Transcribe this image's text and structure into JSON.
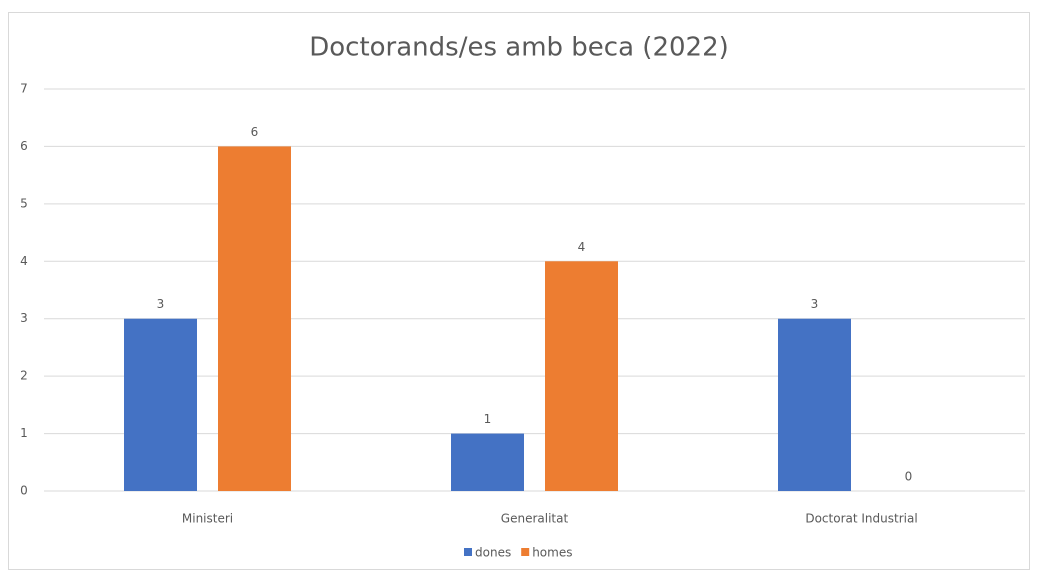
{
  "chart_data": {
    "type": "bar",
    "title": "Doctorands/es amb beca (2022)",
    "categories": [
      "Ministeri",
      "Generalitat",
      "Doctorat Industrial"
    ],
    "series": [
      {
        "name": "dones",
        "color": "#4472c4",
        "values": [
          3,
          1,
          3
        ]
      },
      {
        "name": "homes",
        "color": "#ed7d31",
        "values": [
          6,
          4,
          0
        ]
      }
    ],
    "ylim": [
      0,
      7
    ],
    "yticks": [
      0,
      1,
      2,
      3,
      4,
      5,
      6,
      7
    ],
    "grid": true,
    "legend": "bottom",
    "data_labels": true
  }
}
